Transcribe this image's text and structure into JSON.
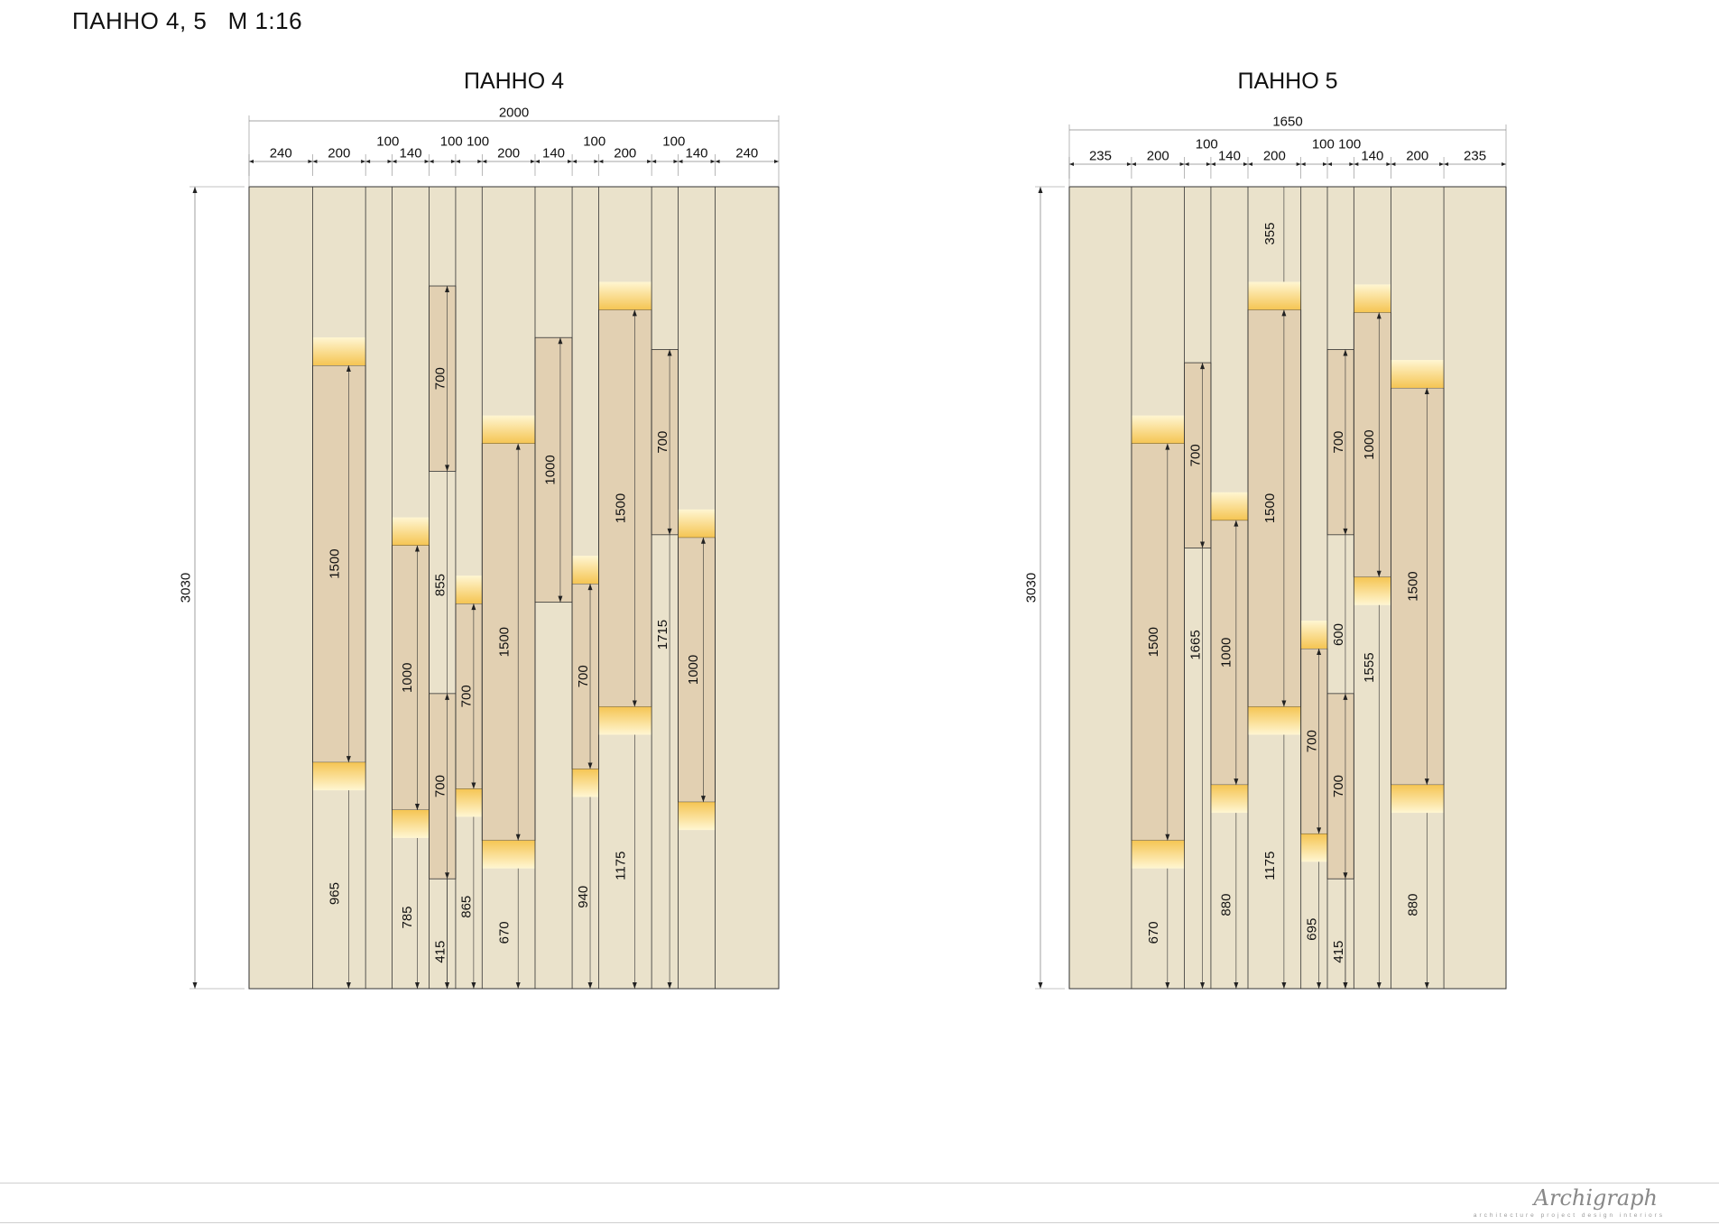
{
  "sheet_title": "ПАННО 4, 5   М 1:16",
  "colors": {
    "background": "#eae2cb",
    "slat": "#e2d0b2",
    "light_top": "#fff3c6",
    "light_bottom": "#f5c85a",
    "line": "#333333",
    "dim_line": "#888888"
  },
  "panels": [
    {
      "title": "ПАННО 4",
      "width_mm": 2000,
      "height_mm": 3030,
      "width_label": "2000",
      "height_label": "3030",
      "columns": [
        {
          "width": 240,
          "label": "240"
        },
        {
          "width": 200,
          "label": "200"
        },
        {
          "width": 100,
          "label": "100"
        },
        {
          "width": 140,
          "label": "140"
        },
        {
          "width": 100,
          "label": "100"
        },
        {
          "width": 100,
          "label": "100"
        },
        {
          "width": 200,
          "label": "200"
        },
        {
          "width": 140,
          "label": "140"
        },
        {
          "width": 100,
          "label": "100"
        },
        {
          "width": 200,
          "label": "200"
        },
        {
          "width": 100,
          "label": "100"
        },
        {
          "width": 140,
          "label": "140"
        },
        {
          "width": 240,
          "label": "240"
        }
      ],
      "slats": [
        {
          "col": 1,
          "length": 1500,
          "length_label": "1500",
          "bottom": 855,
          "bottom_label": "965",
          "light_top": true,
          "light_bottom": true
        },
        {
          "col": 3,
          "length": 1000,
          "length_label": "1000",
          "bottom": 675,
          "bottom_label": "785",
          "light_top": true,
          "light_bottom": true
        },
        {
          "col": 4,
          "length": 700,
          "length_label": "700",
          "bottom": 1955,
          "bottom_label": "855",
          "light_top": false,
          "light_bottom": false
        },
        {
          "col": 4,
          "length": 700,
          "length_label": "700",
          "bottom": 415,
          "bottom_label": "415",
          "light_top": false,
          "light_bottom": false
        },
        {
          "col": 5,
          "length": 700,
          "length_label": "700",
          "bottom": 755,
          "bottom_label": "865",
          "light_top": true,
          "light_bottom": true
        },
        {
          "col": 6,
          "length": 1500,
          "length_label": "1500",
          "bottom": 560,
          "bottom_label": "670",
          "light_top": true,
          "light_bottom": true
        },
        {
          "col": 7,
          "length": 1000,
          "length_label": "1000",
          "bottom": 1460,
          "bottom_label": "",
          "light_top": false,
          "light_bottom": false
        },
        {
          "col": 8,
          "length": 700,
          "length_label": "700",
          "bottom": 830,
          "bottom_label": "940",
          "light_top": true,
          "light_bottom": true
        },
        {
          "col": 9,
          "length": 1500,
          "length_label": "1500",
          "bottom": 1065,
          "bottom_label": "1175",
          "light_top": true,
          "light_bottom": true
        },
        {
          "col": 10,
          "length": 700,
          "length_label": "700",
          "bottom": 1715,
          "bottom_label": "1715",
          "light_top": false,
          "light_bottom": false
        },
        {
          "col": 11,
          "length": 1000,
          "length_label": "1000",
          "bottom": 705,
          "bottom_label": "",
          "light_top": true,
          "light_bottom": true
        }
      ]
    },
    {
      "title": "ПАННО 5",
      "width_mm": 1650,
      "height_mm": 3030,
      "width_label": "1650",
      "height_label": "3030",
      "columns": [
        {
          "width": 235,
          "label": "235"
        },
        {
          "width": 200,
          "label": "200"
        },
        {
          "width": 100,
          "label": "100"
        },
        {
          "width": 140,
          "label": "140"
        },
        {
          "width": 200,
          "label": "200"
        },
        {
          "width": 100,
          "label": "100"
        },
        {
          "width": 100,
          "label": "100"
        },
        {
          "width": 140,
          "label": "140"
        },
        {
          "width": 200,
          "label": "200"
        },
        {
          "width": 235,
          "label": "235"
        }
      ],
      "slats": [
        {
          "col": 1,
          "length": 1500,
          "length_label": "1500",
          "bottom": 560,
          "bottom_label": "670",
          "light_top": true,
          "light_bottom": true
        },
        {
          "col": 2,
          "length": 700,
          "length_label": "700",
          "bottom": 1665,
          "bottom_label": "1665",
          "light_top": false,
          "light_bottom": false
        },
        {
          "col": 3,
          "length": 1000,
          "length_label": "1000",
          "bottom": 770,
          "bottom_label": "880",
          "light_top": true,
          "light_bottom": true
        },
        {
          "col": 4,
          "length": 1500,
          "length_label": "1500",
          "bottom": 1065,
          "bottom_label": "1175",
          "light_top": true,
          "light_bottom": true,
          "top_label": "355"
        },
        {
          "col": 5,
          "length": 700,
          "length_label": "700",
          "bottom": 585,
          "bottom_label": "695",
          "light_top": true,
          "light_bottom": true
        },
        {
          "col": 6,
          "length": 700,
          "length_label": "700",
          "bottom": 1715,
          "bottom_label": "600",
          "light_top": false,
          "light_bottom": false
        },
        {
          "col": 6,
          "length": 700,
          "length_label": "700",
          "bottom": 415,
          "bottom_label": "415",
          "light_top": false,
          "light_bottom": false
        },
        {
          "col": 7,
          "length": 1000,
          "length_label": "1000",
          "bottom": 1555,
          "bottom_label": "1555",
          "light_top": true,
          "light_bottom": true
        },
        {
          "col": 8,
          "length": 1500,
          "length_label": "1500",
          "bottom": 770,
          "bottom_label": "880",
          "light_top": true,
          "light_bottom": true
        }
      ]
    }
  ],
  "footer": {
    "logo_text": "Archigraph",
    "tagline": "architecture  project  design  interiors"
  }
}
